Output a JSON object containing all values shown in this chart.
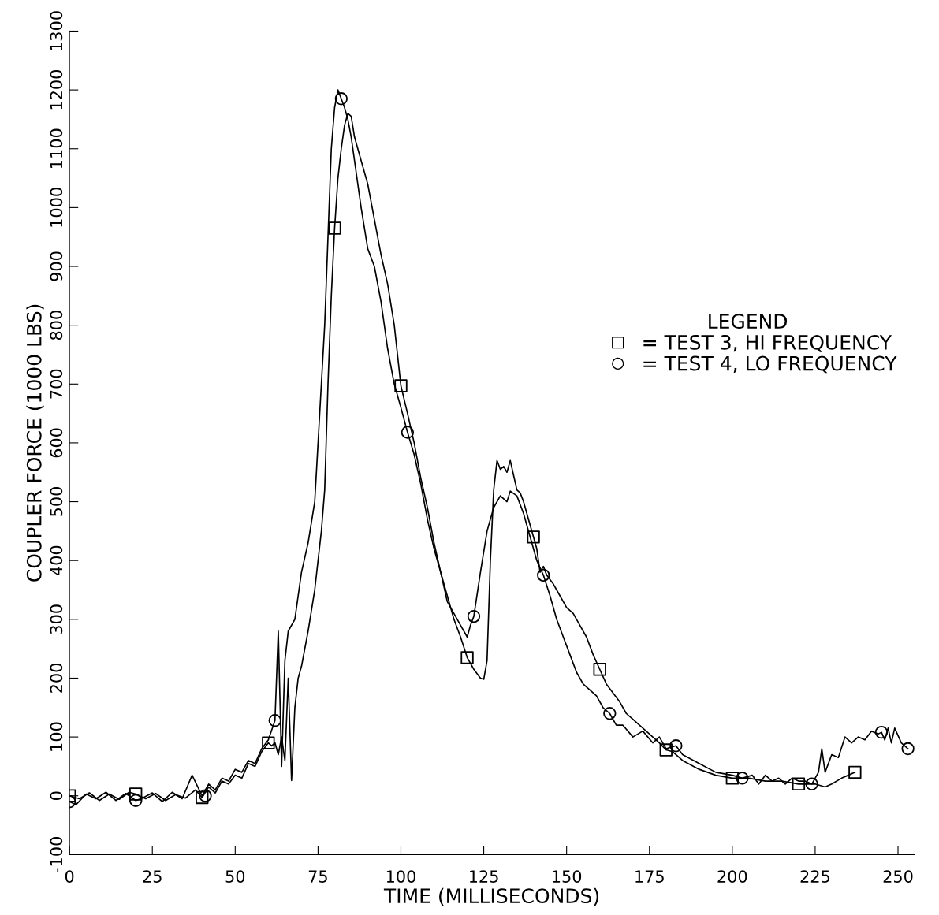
{
  "chart_data": {
    "type": "line",
    "xlabel": "TIME (MILLISECONDS)",
    "ylabel": "COUPLER FORCE (1000 LBS)",
    "legend_title": "LEGEND",
    "xlim": [
      0,
      255
    ],
    "ylim": [
      -100,
      1300
    ],
    "xticks": [
      0,
      25,
      50,
      75,
      100,
      125,
      150,
      175,
      200,
      225,
      250
    ],
    "yticks": [
      {
        "value": -100,
        "label": "-100"
      },
      0,
      100,
      200,
      300,
      400,
      500,
      600,
      700,
      800,
      900,
      1000,
      1100,
      1200,
      1300
    ],
    "grid": false,
    "legend": "right",
    "line_style": "solid",
    "series": [
      {
        "color": "#000000",
        "x": [
          0,
          3,
          6,
          9,
          12,
          15,
          18,
          20,
          23,
          26,
          29,
          32,
          35,
          38,
          40,
          42,
          44,
          46,
          48,
          50,
          52,
          54,
          56,
          58,
          60,
          61,
          62,
          63,
          64,
          65,
          66,
          67,
          68,
          69,
          70,
          72,
          74,
          76,
          77,
          78,
          79,
          80,
          81,
          82,
          83,
          84,
          85,
          86,
          88,
          90,
          92,
          94,
          96,
          98,
          100,
          102,
          104,
          106,
          108,
          110,
          112,
          114,
          116,
          118,
          120,
          122,
          124,
          125,
          126,
          127,
          128,
          129,
          130,
          131,
          132,
          133,
          134,
          135,
          136,
          137,
          138,
          140,
          141,
          142,
          143,
          144,
          146,
          148,
          150,
          152,
          154,
          156,
          158,
          160,
          162,
          164,
          166,
          168,
          170,
          172,
          175,
          178,
          180,
          182,
          185,
          190,
          195,
          200,
          205,
          210,
          215,
          220,
          225,
          228,
          230,
          233,
          235,
          237
        ],
        "values": [
          0,
          -5,
          5,
          -8,
          3,
          -6,
          6,
          3,
          -5,
          4,
          -8,
          2,
          -4,
          10,
          -3,
          15,
          5,
          25,
          20,
          35,
          30,
          55,
          50,
          75,
          90,
          85,
          90,
          70,
          100,
          60,
          200,
          26,
          150,
          200,
          220,
          280,
          350,
          450,
          520,
          700,
          850,
          965,
          1050,
          1100,
          1140,
          1160,
          1155,
          1120,
          1080,
          1040,
          980,
          920,
          870,
          800,
          697,
          650,
          600,
          540,
          490,
          430,
          380,
          340,
          300,
          270,
          235,
          215,
          200,
          198,
          230,
          400,
          520,
          570,
          555,
          560,
          550,
          570,
          545,
          520,
          515,
          500,
          480,
          440,
          420,
          380,
          390,
          375,
          360,
          340,
          320,
          310,
          290,
          270,
          240,
          215,
          190,
          175,
          160,
          140,
          130,
          120,
          105,
          90,
          78,
          75,
          60,
          45,
          35,
          30,
          30,
          25,
          25,
          20,
          20,
          15,
          20,
          30,
          35,
          40
        ]
      },
      {
        "color": "#000000",
        "x": [
          0,
          2,
          5,
          8,
          11,
          14,
          17,
          20,
          22,
          25,
          28,
          31,
          34,
          37,
          40,
          42,
          44,
          46,
          48,
          50,
          52,
          54,
          56,
          58,
          60,
          62,
          63,
          64,
          65,
          66,
          68,
          70,
          72,
          74,
          75,
          77,
          78,
          79,
          80,
          81,
          82,
          83,
          84,
          85,
          86,
          88,
          90,
          92,
          94,
          96,
          98,
          100,
          102,
          104,
          106,
          108,
          110,
          112,
          114,
          116,
          118,
          120,
          121,
          122,
          124,
          126,
          128,
          130,
          132,
          133,
          135,
          137,
          139,
          141,
          143,
          145,
          147,
          149,
          151,
          153,
          155,
          157,
          159,
          161,
          163,
          165,
          167,
          170,
          173,
          176,
          178,
          180,
          183,
          185,
          190,
          195,
          200,
          203,
          206,
          208,
          210,
          212,
          214,
          216,
          218,
          220,
          222,
          224,
          226,
          227,
          228,
          230,
          232,
          234,
          236,
          238,
          240,
          242,
          244,
          245,
          246,
          247,
          248,
          249,
          251,
          253
        ],
        "values": [
          -10,
          -15,
          3,
          -5,
          6,
          -8,
          4,
          -8,
          -4,
          5,
          -10,
          6,
          -5,
          35,
          0,
          20,
          10,
          30,
          25,
          45,
          40,
          60,
          55,
          80,
          95,
          128,
          280,
          50,
          230,
          280,
          300,
          380,
          430,
          500,
          600,
          800,
          950,
          1100,
          1170,
          1200,
          1185,
          1170,
          1150,
          1120,
          1080,
          1000,
          930,
          900,
          840,
          760,
          700,
          660,
          618,
          580,
          530,
          470,
          420,
          380,
          330,
          310,
          290,
          270,
          290,
          305,
          380,
          450,
          490,
          510,
          500,
          518,
          510,
          480,
          440,
          400,
          375,
          340,
          300,
          270,
          240,
          210,
          190,
          180,
          170,
          150,
          140,
          120,
          120,
          100,
          110,
          90,
          100,
          80,
          85,
          70,
          55,
          40,
          35,
          30,
          35,
          20,
          35,
          25,
          30,
          20,
          30,
          25,
          25,
          20,
          40,
          80,
          40,
          70,
          65,
          100,
          90,
          100,
          95,
          110,
          105,
          108,
          95,
          115,
          90,
          115,
          90,
          80
        ]
      },
      {
        "type": "scatter",
        "name": "= TEST 3, HI FREQUENCY",
        "color": "#000000",
        "marker": "square",
        "x": [
          0,
          20,
          40,
          60,
          80,
          100,
          120,
          140,
          160,
          180,
          200,
          220,
          237
        ],
        "values": [
          0,
          3,
          -3,
          90,
          965,
          697,
          235,
          440,
          215,
          78,
          30,
          20,
          40
        ]
      },
      {
        "type": "scatter",
        "name": "= TEST 4, LO FREQUENCY",
        "color": "#000000",
        "marker": "circle",
        "x": [
          0,
          20,
          41,
          62,
          82,
          102,
          122,
          143,
          163,
          183,
          203,
          224,
          245,
          253
        ],
        "values": [
          -10,
          -8,
          0,
          128,
          1185,
          618,
          305,
          375,
          140,
          85,
          30,
          20,
          108,
          80
        ]
      }
    ]
  }
}
